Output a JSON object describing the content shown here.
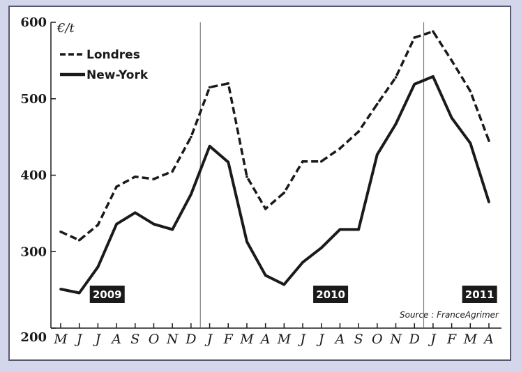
{
  "chart_data": {
    "type": "line",
    "title": "",
    "ylabel": "€/t",
    "xlabel": "",
    "ylim": [
      200,
      600
    ],
    "yticks": [
      200,
      300,
      400,
      500,
      600
    ],
    "categories": [
      "M",
      "J",
      "J",
      "A",
      "S",
      "O",
      "N",
      "D",
      "J",
      "F",
      "M",
      "A",
      "M",
      "J",
      "J",
      "A",
      "S",
      "O",
      "N",
      "D",
      "J",
      "F",
      "M",
      "A"
    ],
    "year_labels": [
      {
        "label": "2009",
        "at_index": 2.5
      },
      {
        "label": "2010",
        "at_index": 14.5
      },
      {
        "label": "2011",
        "at_index": 22.5
      }
    ],
    "year_dividers": [
      7.5,
      19.5
    ],
    "series": [
      {
        "name": "Londres",
        "style": "dashed",
        "values": [
          326,
          315,
          335,
          385,
          398,
          395,
          405,
          450,
          515,
          520,
          398,
          356,
          377,
          418,
          418,
          435,
          457,
          493,
          528,
          580,
          588,
          550,
          510,
          445
        ]
      },
      {
        "name": "New-York",
        "style": "solid",
        "values": [
          251,
          246,
          280,
          336,
          351,
          336,
          329,
          375,
          438,
          417,
          313,
          269,
          257,
          286,
          305,
          329,
          329,
          427,
          467,
          519,
          529,
          475,
          442,
          365
        ]
      }
    ],
    "legend_position": "top-left",
    "grid": false,
    "source": "Source : FranceAgrimer",
    "line_color": "#1a1a1a"
  }
}
